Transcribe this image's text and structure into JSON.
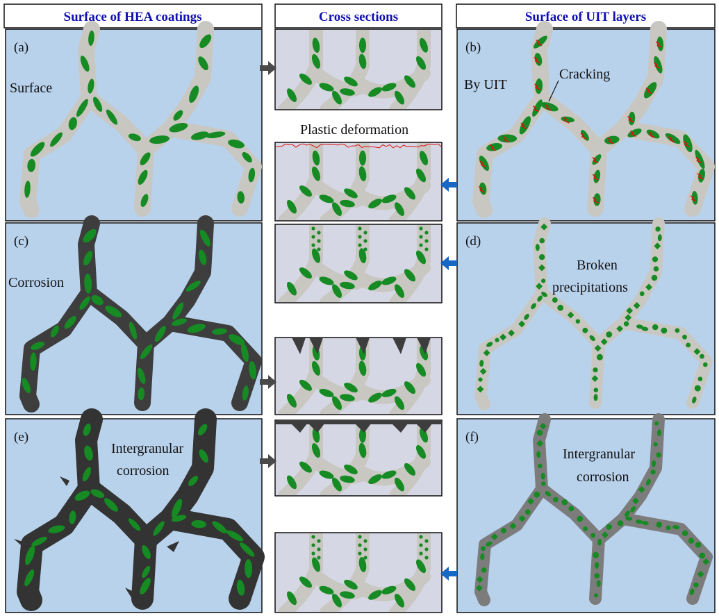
{
  "headers": {
    "left": "Surface of HEA coatings",
    "middle": "Cross sections",
    "right": "Surface of UIT layers"
  },
  "panels": {
    "a": {
      "tag": "(a)",
      "label": "Surface"
    },
    "b": {
      "tag": "(b)",
      "label": "By UIT",
      "annotation": "Cracking"
    },
    "c": {
      "tag": "(c)",
      "label": "Corrosion"
    },
    "d": {
      "tag": "(d)",
      "label_line1": "Broken",
      "label_line2": "precipitations"
    },
    "e": {
      "tag": "(e)",
      "label_line1": "Intergranular",
      "label_line2": "corrosion"
    },
    "f": {
      "tag": "(f)",
      "label_line1": "Intergranular",
      "label_line2": "corrosion"
    }
  },
  "cross_sections": {
    "plastic_label": "Plastic deformation"
  },
  "colors": {
    "panel_bg": "#b9d2ec",
    "grain_boundary": "#c9c7c2",
    "precipitate": "#168a23",
    "corrosion": "#3d3d3d",
    "corroded_uit_boundary": "#7c7c7c",
    "crack": "#e01010",
    "cross_section_bg": "#d5d8e4",
    "arrow_gray": "#4a4a4a",
    "arrow_blue": "#1768c4",
    "header_text": "#1010b0"
  },
  "icons": {
    "right_arrow": "arrow-right-icon",
    "left_arrow": "arrow-left-icon"
  }
}
